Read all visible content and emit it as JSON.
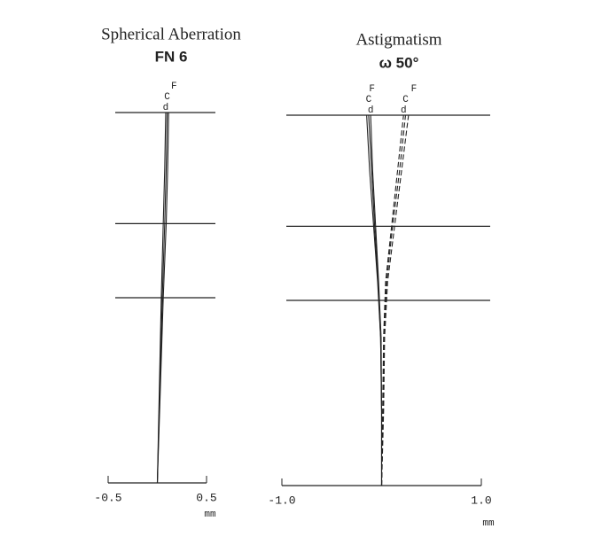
{
  "chart_data": [
    {
      "type": "line",
      "title": "Spherical Aberration",
      "subtitle": "FN 6",
      "x_label": "mm",
      "xlim": [
        -0.5,
        0.5
      ],
      "xticks": [
        -0.5,
        0.5
      ],
      "ylim": [
        0,
        1
      ],
      "hlines": [
        1,
        0.7,
        0.5
      ],
      "series": [
        {
          "name": "F",
          "color": "#222222",
          "dash": false,
          "x": [
            0,
            0.03,
            0.06,
            0.09,
            0.105,
            0.115
          ],
          "values": [
            0,
            0.25,
            0.5,
            0.7,
            0.85,
            1
          ]
        },
        {
          "name": "C",
          "color": "#222222",
          "dash": false,
          "x": [
            0,
            0.025,
            0.05,
            0.075,
            0.09,
            0.1
          ],
          "values": [
            0,
            0.25,
            0.5,
            0.7,
            0.85,
            1
          ]
        },
        {
          "name": "d",
          "color": "#222222",
          "dash": false,
          "x": [
            0,
            0.02,
            0.04,
            0.06,
            0.075,
            0.085
          ],
          "values": [
            0,
            0.25,
            0.5,
            0.7,
            0.85,
            1
          ]
        }
      ]
    },
    {
      "type": "line",
      "title": "Astigmatism",
      "subtitle": "ω 50°",
      "x_label": "mm",
      "xlim": [
        -1,
        1
      ],
      "xticks": [
        {
          "value": -1,
          "label": "-1.0"
        },
        {
          "value": 1,
          "label": "1.0"
        }
      ],
      "ylim": [
        0,
        1
      ],
      "hlines": [
        1,
        0.7,
        0.5
      ],
      "series": [
        {
          "name": "F",
          "color": "#222222",
          "dash": false,
          "x": [
            0,
            0,
            -0.01,
            -0.04,
            -0.08,
            -0.12,
            -0.15
          ],
          "values": [
            0,
            0.2,
            0.4,
            0.55,
            0.7,
            0.85,
            1
          ]
        },
        {
          "name": "C",
          "color": "#222222",
          "dash": false,
          "x": [
            0,
            0,
            -0.01,
            -0.035,
            -0.07,
            -0.1,
            -0.13
          ],
          "values": [
            0,
            0.2,
            0.4,
            0.55,
            0.7,
            0.85,
            1
          ]
        },
        {
          "name": "d",
          "color": "#222222",
          "dash": false,
          "x": [
            0,
            0,
            -0.005,
            -0.03,
            -0.06,
            -0.09,
            -0.11
          ],
          "values": [
            0,
            0.2,
            0.4,
            0.55,
            0.7,
            0.85,
            1
          ]
        },
        {
          "name": "F",
          "color": "#222222",
          "dash": true,
          "x": [
            0,
            0.02,
            0.03,
            0.06,
            0.13,
            0.2,
            0.27
          ],
          "values": [
            0,
            0.2,
            0.4,
            0.55,
            0.7,
            0.85,
            1
          ]
        },
        {
          "name": "C",
          "color": "#222222",
          "dash": true,
          "x": [
            0,
            0.015,
            0.025,
            0.05,
            0.11,
            0.18,
            0.24
          ],
          "values": [
            0,
            0.2,
            0.4,
            0.55,
            0.7,
            0.85,
            1
          ]
        },
        {
          "name": "d",
          "color": "#222222",
          "dash": true,
          "x": [
            0,
            0.01,
            0.02,
            0.04,
            0.1,
            0.16,
            0.22
          ],
          "values": [
            0,
            0.2,
            0.4,
            0.55,
            0.7,
            0.85,
            1
          ]
        }
      ]
    }
  ]
}
